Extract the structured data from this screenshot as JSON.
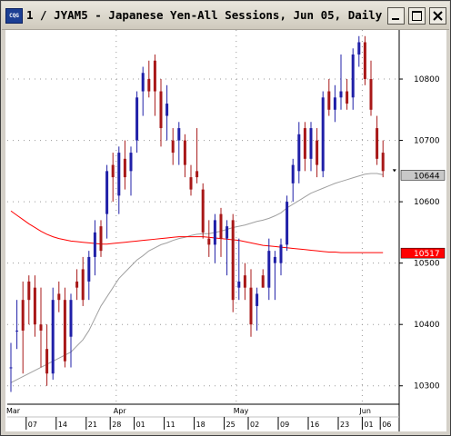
{
  "window": {
    "title": "1 / JYAM5 - Japanese Yen-All Sessions, Jun 05, Daily",
    "icon_text": "CQG"
  },
  "chart_data": {
    "type": "candlestick",
    "title": "1 / JYAM5 - Japanese Yen-All Sessions, Jun 05, Daily",
    "ylim": [
      10270,
      10880
    ],
    "y_ticks": [
      10300,
      10400,
      10500,
      10600,
      10700,
      10800
    ],
    "y_tick_labels": [
      "10300",
      "10400",
      "10500",
      "10600",
      "10700",
      "10800"
    ],
    "month_labels": [
      {
        "index": 0,
        "label": "Mar"
      },
      {
        "index": 18,
        "label": "Apr"
      },
      {
        "index": 38,
        "label": "May"
      },
      {
        "index": 59,
        "label": "Jun"
      }
    ],
    "day_labels": [
      {
        "index": 3,
        "label": "07"
      },
      {
        "index": 8,
        "label": "14"
      },
      {
        "index": 13,
        "label": "21"
      },
      {
        "index": 17,
        "label": "28"
      },
      {
        "index": 21,
        "label": "01"
      },
      {
        "index": 26,
        "label": "11"
      },
      {
        "index": 31,
        "label": "18"
      },
      {
        "index": 36,
        "label": "25"
      },
      {
        "index": 40,
        "label": "02"
      },
      {
        "index": 45,
        "label": "09"
      },
      {
        "index": 50,
        "label": "16"
      },
      {
        "index": 55,
        "label": "23"
      },
      {
        "index": 59,
        "label": "01"
      },
      {
        "index": 62,
        "label": "06"
      }
    ],
    "grid": true,
    "price_markers": [
      {
        "label": "10644",
        "value": 10644,
        "color": "#c8c8c8",
        "text_color": "#000000"
      },
      {
        "label": "10517",
        "value": 10517,
        "color": "#ff0000",
        "text_color": "#ffffff"
      }
    ],
    "candles": [
      [
        10330,
        10290,
        10370,
        10330
      ],
      [
        10390,
        10360,
        10440,
        10390
      ],
      [
        10440,
        10320,
        10470,
        10390
      ],
      [
        10470,
        10400,
        10480,
        10440
      ],
      [
        10460,
        10380,
        10480,
        10400
      ],
      [
        10400,
        10330,
        10460,
        10390
      ],
      [
        10360,
        10300,
        10400,
        10320
      ],
      [
        10320,
        10310,
        10460,
        10440
      ],
      [
        10450,
        10420,
        10470,
        10440
      ],
      [
        10440,
        10330,
        10460,
        10340
      ],
      [
        10380,
        10330,
        10450,
        10440
      ],
      [
        10470,
        10440,
        10490,
        10460
      ],
      [
        10490,
        10430,
        10510,
        10440
      ],
      [
        10470,
        10440,
        10520,
        10510
      ],
      [
        10510,
        10480,
        10570,
        10550
      ],
      [
        10560,
        10510,
        10570,
        10520
      ],
      [
        10580,
        10540,
        10660,
        10650
      ],
      [
        10660,
        10600,
        10680,
        10640
      ],
      [
        10610,
        10580,
        10690,
        10680
      ],
      [
        10670,
        10620,
        10700,
        10640
      ],
      [
        10650,
        10610,
        10690,
        10680
      ],
      [
        10700,
        10680,
        10780,
        10770
      ],
      [
        10780,
        10740,
        10820,
        10810
      ],
      [
        10800,
        10770,
        10830,
        10780
      ],
      [
        10830,
        10740,
        10840,
        10780
      ],
      [
        10780,
        10690,
        10800,
        10720
      ],
      [
        10740,
        10700,
        10790,
        10760
      ],
      [
        10700,
        10660,
        10720,
        10680
      ],
      [
        10700,
        10660,
        10730,
        10720
      ],
      [
        10700,
        10640,
        10710,
        10660
      ],
      [
        10640,
        10610,
        10660,
        10620
      ],
      [
        10650,
        10630,
        10720,
        10640
      ],
      [
        10620,
        10540,
        10630,
        10550
      ],
      [
        10540,
        10510,
        10570,
        10530
      ],
      [
        10530,
        10500,
        10580,
        10570
      ],
      [
        10580,
        10510,
        10590,
        10540
      ],
      [
        10540,
        10480,
        10570,
        10560
      ],
      [
        10570,
        10420,
        10580,
        10440
      ],
      [
        10460,
        10440,
        10540,
        10470
      ],
      [
        10480,
        10440,
        10500,
        10460
      ],
      [
        10460,
        10380,
        10490,
        10400
      ],
      [
        10430,
        10390,
        10460,
        10450
      ],
      [
        10480,
        10460,
        10490,
        10460
      ],
      [
        10460,
        10440,
        10540,
        10520
      ],
      [
        10500,
        10440,
        10520,
        10510
      ],
      [
        10500,
        10480,
        10540,
        10530
      ],
      [
        10530,
        10520,
        10610,
        10600
      ],
      [
        10630,
        10600,
        10670,
        10660
      ],
      [
        10650,
        10630,
        10730,
        10710
      ],
      [
        10720,
        10650,
        10730,
        10670
      ],
      [
        10670,
        10650,
        10730,
        10720
      ],
      [
        10700,
        10640,
        10720,
        10660
      ],
      [
        10650,
        10640,
        10780,
        10770
      ],
      [
        10780,
        10740,
        10800,
        10750
      ],
      [
        10750,
        10730,
        10790,
        10770
      ],
      [
        10770,
        10750,
        10840,
        10780
      ],
      [
        10780,
        10750,
        10800,
        10760
      ],
      [
        10770,
        10750,
        10850,
        10840
      ],
      [
        10840,
        10820,
        10870,
        10860
      ],
      [
        10860,
        10790,
        10870,
        10800
      ],
      [
        10800,
        10740,
        10830,
        10750
      ],
      [
        10720,
        10660,
        10740,
        10670
      ],
      [
        10680,
        10640,
        10700,
        10650
      ]
    ],
    "series": [
      {
        "name": "",
        "color": "#a0a0a0",
        "values": [
          10305,
          10310,
          10315,
          10320,
          10325,
          10330,
          10335,
          10340,
          10345,
          10350,
          10355,
          10365,
          10375,
          10390,
          10410,
          10430,
          10445,
          10460,
          10475,
          10485,
          10495,
          10505,
          10512,
          10520,
          10525,
          10530,
          10533,
          10537,
          10540,
          10542,
          10545,
          10547,
          10548,
          10548,
          10550,
          10552,
          10555,
          10558,
          10560,
          10562,
          10565,
          10568,
          10570,
          10573,
          10577,
          10582,
          10590,
          10596,
          10602,
          10608,
          10614,
          10618,
          10622,
          10626,
          10630,
          10633,
          10636,
          10639,
          10642,
          10645,
          10646,
          10646,
          10644
        ]
      },
      {
        "name": "",
        "color": "#ff0000",
        "values": [
          10585,
          10578,
          10571,
          10564,
          10558,
          10552,
          10547,
          10543,
          10540,
          10538,
          10536,
          10535,
          10534,
          10533,
          10532,
          10531,
          10531,
          10532,
          10533,
          10534,
          10535,
          10536,
          10537,
          10538,
          10539,
          10540,
          10541,
          10542,
          10543,
          10543,
          10543,
          10543,
          10543,
          10542,
          10541,
          10540,
          10539,
          10538,
          10537,
          10535,
          10533,
          10531,
          10529,
          10528,
          10527,
          10526,
          10525,
          10524,
          10523,
          10522,
          10521,
          10520,
          10519,
          10518,
          10518,
          10517,
          10517,
          10517,
          10517,
          10517,
          10517,
          10517,
          10517
        ]
      }
    ]
  },
  "colors": {
    "up": "#2020a8",
    "down": "#a81818",
    "grid": "#9a9a9a",
    "axis": "#000000"
  }
}
